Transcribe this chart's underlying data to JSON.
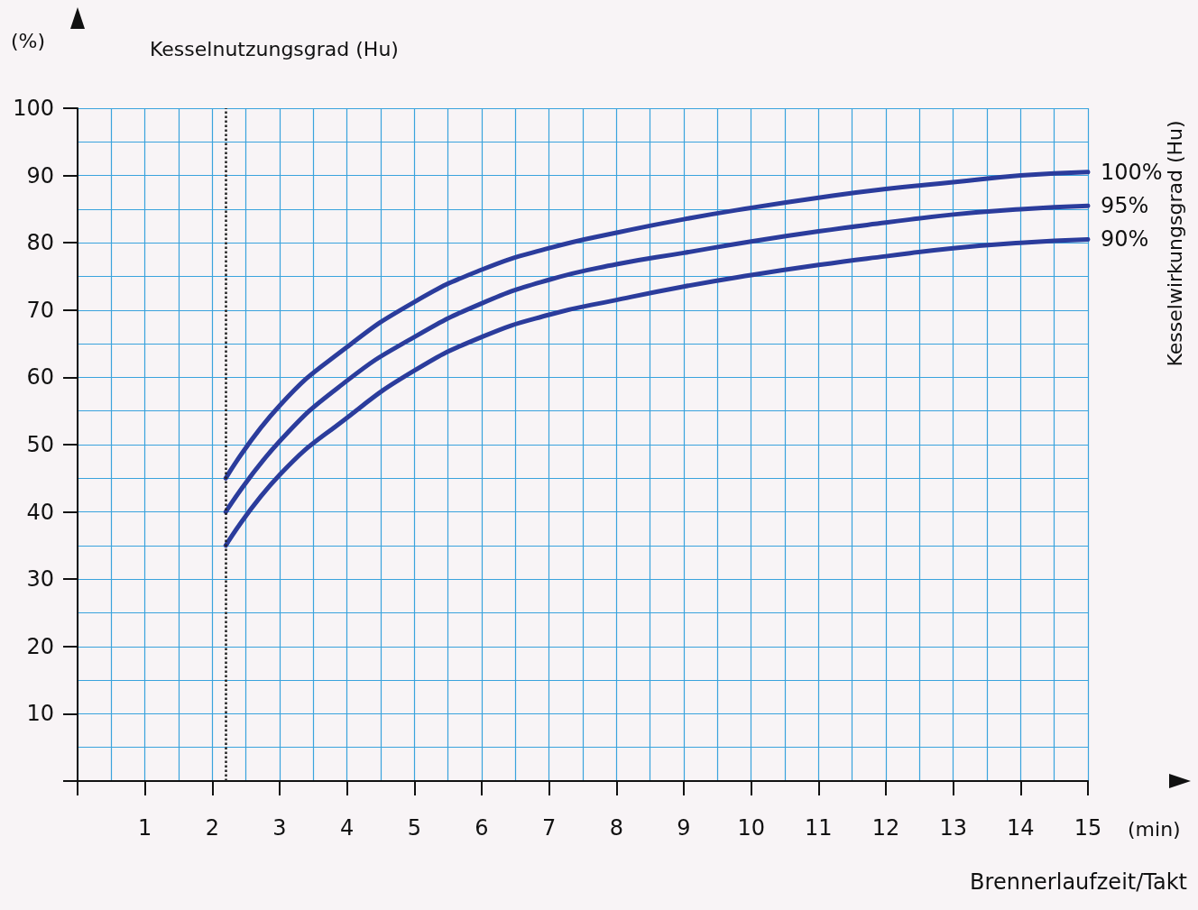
{
  "chart_data": {
    "type": "line",
    "xlabel": "Brennerlaufzeit/Takt",
    "ylabel": "Kesselnutzungsgrad (Hu)",
    "y2label": "Kesselwirkungsgrad (Hu)",
    "annotations": [
      "(%)",
      "(min)"
    ],
    "x": [
      2.2,
      3,
      4,
      5,
      6,
      7,
      8,
      9,
      10,
      11,
      12,
      13,
      14,
      15
    ],
    "series": [
      {
        "name": "100%",
        "color": "#2b3c9c",
        "values": [
          45,
          55.8,
          64.5,
          71.2,
          76,
          79.2,
          81.5,
          83.5,
          85.2,
          86.7,
          88,
          89,
          90,
          90.5
        ]
      },
      {
        "name": "95%",
        "color": "#2b3c9c",
        "values": [
          40,
          50.5,
          59.5,
          66,
          71,
          74.5,
          76.8,
          78.5,
          80.2,
          81.7,
          83,
          84.2,
          85,
          85.5
        ]
      },
      {
        "name": "90%",
        "color": "#2b3c9c",
        "values": [
          35,
          45.5,
          54,
          61,
          66,
          69.3,
          71.5,
          73.5,
          75.2,
          76.7,
          78,
          79.2,
          80,
          80.5
        ]
      }
    ],
    "xlim": [
      0,
      15
    ],
    "xticks": [
      {
        "value": 0,
        "label": null
      },
      1,
      2,
      3,
      4,
      5,
      6,
      7,
      8,
      9,
      10,
      11,
      12,
      13,
      14,
      15
    ],
    "ylim": [
      0,
      100
    ],
    "yticks": [
      {
        "value": 0,
        "label": null
      },
      10,
      20,
      30,
      40,
      50,
      60,
      70,
      80,
      90,
      100
    ],
    "ref_lines": [
      {
        "axis": "x",
        "value": 2.2,
        "label": null,
        "color": "#222222",
        "line_style": "dotted"
      }
    ],
    "grid": true,
    "legend": false,
    "marker": "none",
    "line_style": "solid"
  }
}
